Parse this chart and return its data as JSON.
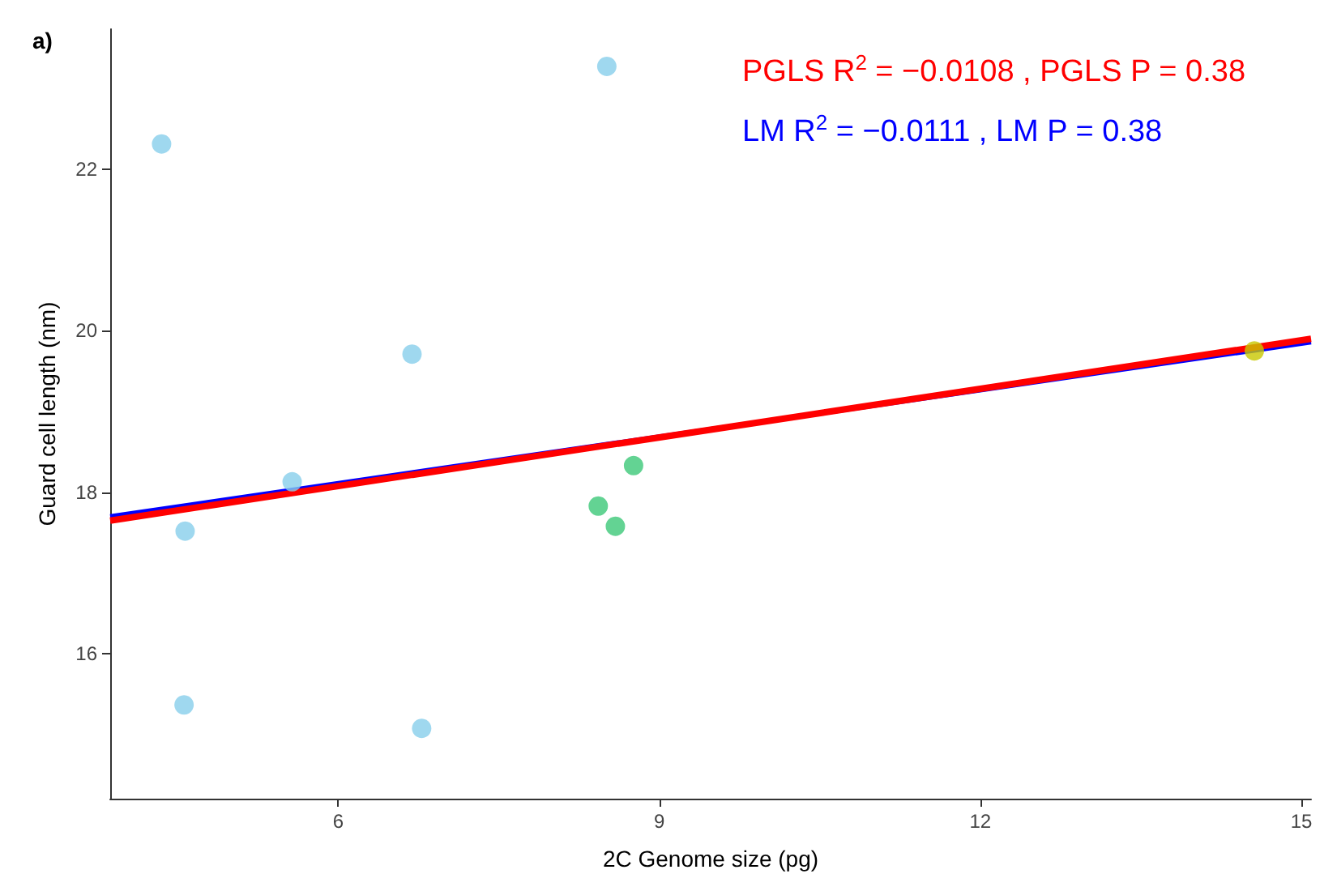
{
  "chart_data": {
    "type": "scatter",
    "title": "a)",
    "xlabel": "2C Genome size (pg)",
    "ylabel": "Guard cell length (nm)",
    "xlim": [
      3.87,
      15.09
    ],
    "xticks": [
      6,
      9,
      12,
      15
    ],
    "ylim": [
      14.21,
      23.73
    ],
    "yticks": [
      16,
      18,
      20,
      22
    ],
    "grid": false,
    "series": [
      {
        "marker": "circle",
        "color": "#87ceeb",
        "x": [
          4.35,
          8.51,
          6.69,
          5.57,
          4.57,
          4.56,
          6.78
        ],
        "values": [
          22.31,
          23.27,
          19.71,
          18.13,
          17.52,
          15.37,
          15.08
        ]
      },
      {
        "marker": "circle",
        "color": "#3cc878",
        "x": [
          8.43,
          8.59,
          8.76
        ],
        "values": [
          17.83,
          17.58,
          18.33
        ]
      },
      {
        "marker": "circle",
        "color": "#c8c800",
        "x": [
          14.56
        ],
        "values": [
          19.75
        ]
      },
      {
        "type": "line",
        "marker": "none",
        "color": "#ff0000",
        "x": [
          3.87,
          15.09
        ],
        "values": [
          17.65,
          19.9
        ]
      },
      {
        "type": "line",
        "marker": "none",
        "color": "#0000ff",
        "x": [
          3.87,
          15.09
        ],
        "values": [
          17.7,
          19.86
        ]
      }
    ],
    "annotations": [
      "PGLS R$^{2}$ = −0.0108 , PGLS P = 0.38",
      "LM R$^{2}$ = −0.0111 , LM P = 0.38"
    ]
  }
}
